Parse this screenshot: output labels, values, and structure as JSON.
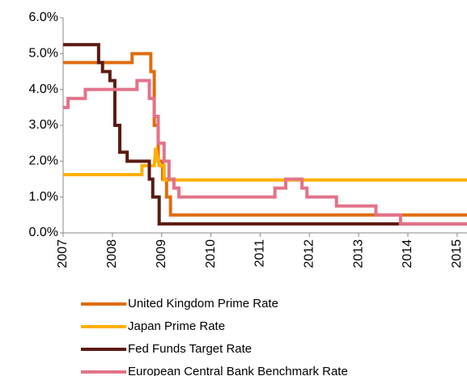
{
  "chart_data": {
    "type": "line",
    "xlim": [
      2007,
      2015.2
    ],
    "xticks": [
      2007,
      2008,
      2009,
      2010,
      2011,
      2012,
      2013,
      2014,
      2015
    ],
    "ylim": [
      0,
      6
    ],
    "yticks": [
      {
        "value": 0,
        "label": "0.0%"
      },
      {
        "value": 1,
        "label": "1.0%"
      },
      {
        "value": 2,
        "label": "2.0%"
      },
      {
        "value": 3,
        "label": "3.0%"
      },
      {
        "value": 4,
        "label": "4.0%"
      },
      {
        "value": 5,
        "label": "5.0%"
      },
      {
        "value": 6,
        "label": "6.0%"
      }
    ],
    "series": [
      {
        "name": "United Kingdom Prime Rate",
        "color": "#e06c10",
        "x": [
          2007,
          2008.4,
          2008.4,
          2008.78,
          2008.78,
          2008.85,
          2008.85,
          2008.93,
          2008.93,
          2009.02,
          2009.02,
          2009.1,
          2009.1,
          2009.18,
          2009.18,
          2015.2
        ],
        "values": [
          4.75,
          4.75,
          5,
          5,
          4.5,
          4.5,
          3,
          3,
          2,
          2,
          1.5,
          1.5,
          1,
          1,
          0.5,
          0.5
        ]
      },
      {
        "name": "Japan Prime Rate",
        "color": "#ffb000",
        "x": [
          2007,
          2008.6,
          2008.6,
          2008.85,
          2008.88,
          2008.95,
          2008.95,
          2009.05,
          2009.05,
          2015.2
        ],
        "values": [
          1.625,
          1.625,
          1.875,
          1.875,
          2.375,
          1.875,
          1.875,
          1.875,
          1.475,
          1.475
        ]
      },
      {
        "name": "Fed Funds Target Rate",
        "color": "#5c1a12",
        "x": [
          2007,
          2007.72,
          2007.72,
          2007.8,
          2007.8,
          2007.95,
          2007.95,
          2008.05,
          2008.05,
          2008.15,
          2008.15,
          2008.3,
          2008.3,
          2008.75,
          2008.75,
          2008.82,
          2008.82,
          2008.95,
          2008.95,
          2015.2
        ],
        "values": [
          5.25,
          5.25,
          4.75,
          4.75,
          4.5,
          4.5,
          4.25,
          4.25,
          3,
          3,
          2.25,
          2.25,
          2,
          2,
          1.5,
          1.5,
          1,
          1,
          0.25,
          0.25
        ]
      },
      {
        "name": "European Central Bank Benchmark Rate",
        "color": "#e2738a",
        "x": [
          2007,
          2007.1,
          2007.1,
          2007.45,
          2007.45,
          2008.5,
          2008.5,
          2008.75,
          2008.75,
          2008.85,
          2008.85,
          2008.93,
          2008.93,
          2009.05,
          2009.05,
          2009.15,
          2009.15,
          2009.25,
          2009.25,
          2009.35,
          2009.35,
          2011.3,
          2011.3,
          2011.52,
          2011.52,
          2011.85,
          2011.85,
          2011.95,
          2011.95,
          2012.55,
          2012.55,
          2013.35,
          2013.35,
          2013.85,
          2013.85,
          2015.2
        ],
        "values": [
          3.5,
          3.5,
          3.75,
          3.75,
          4,
          4,
          4.25,
          4.25,
          3.75,
          3.75,
          3.25,
          3.25,
          2.5,
          2.5,
          2,
          2,
          1.5,
          1.5,
          1.25,
          1.25,
          1,
          1,
          1.25,
          1.25,
          1.5,
          1.5,
          1.25,
          1.25,
          1,
          1,
          0.75,
          0.75,
          0.5,
          0.5,
          0.25,
          0.25
        ]
      }
    ]
  }
}
